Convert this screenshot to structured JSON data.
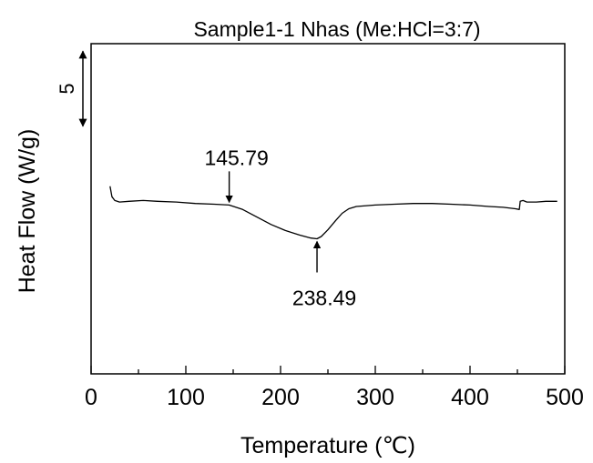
{
  "chart_data": {
    "type": "line",
    "title": "Sample1-1 Nhas (Me:HCl=3:7)",
    "xlabel": "Temperature (℃)",
    "ylabel": "Heat Flow (W/g)",
    "xlim": [
      0,
      500
    ],
    "xticks": [
      0,
      100,
      200,
      300,
      400,
      500
    ],
    "x_minor_step": 50,
    "ylim": [
      -14.5,
      7.5
    ],
    "y_axis_numbers_shown": false,
    "scale_bar": {
      "label": "5",
      "from": 2.0,
      "to": 7.0
    },
    "grid": false,
    "series": [
      {
        "x": [
          20,
          22,
          25,
          30,
          40,
          55,
          70,
          90,
          110,
          130,
          145.79,
          160,
          175,
          190,
          205,
          220,
          232,
          238.49,
          243,
          250,
          258,
          265,
          272,
          280,
          300,
          320,
          340,
          360,
          380,
          400,
          420,
          435,
          448,
          452,
          453,
          456,
          460,
          470,
          480,
          492
        ],
        "values": [
          -2.0,
          -2.7,
          -2.95,
          -3.05,
          -3.0,
          -2.95,
          -3.0,
          -3.05,
          -3.15,
          -3.2,
          -3.25,
          -3.55,
          -4.05,
          -4.55,
          -4.95,
          -5.25,
          -5.45,
          -5.5,
          -5.35,
          -4.9,
          -4.3,
          -3.8,
          -3.5,
          -3.35,
          -3.25,
          -3.2,
          -3.15,
          -3.15,
          -3.2,
          -3.25,
          -3.35,
          -3.4,
          -3.5,
          -3.55,
          -3.0,
          -2.95,
          -3.05,
          -3.05,
          -3.0,
          -3.0
        ],
        "color": "#000000"
      }
    ],
    "annotations": [
      {
        "label": "145.79",
        "x": 145.79,
        "y": -3.25,
        "direction": "down"
      },
      {
        "label": "238.49",
        "x": 238.49,
        "y": -5.5,
        "direction": "up"
      }
    ]
  }
}
